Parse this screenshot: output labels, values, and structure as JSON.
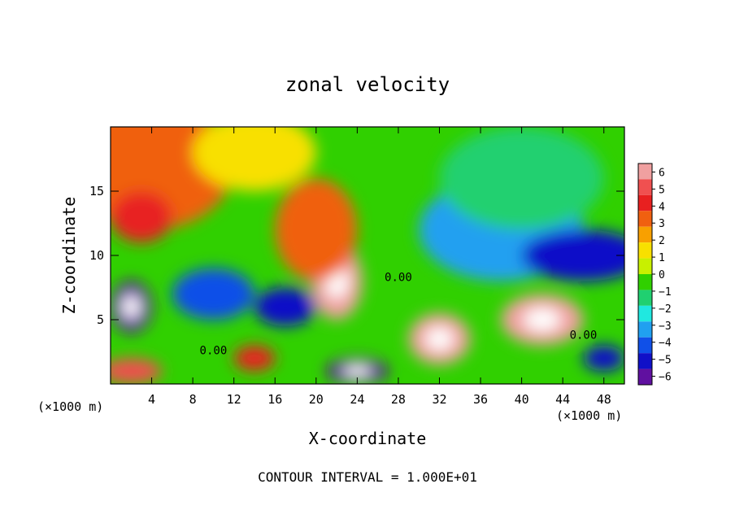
{
  "chart_data": {
    "type": "heatmap",
    "title": "zonal velocity",
    "xlabel": "X-coordinate",
    "ylabel": "Z-coordinate",
    "x_unit": "(×1000 m)",
    "x_unit_right": "(×1000 m)",
    "footer": "CONTOUR INTERVAL = 1.000E+01",
    "xlim": [
      0,
      50
    ],
    "ylim": [
      0,
      20
    ],
    "xticks": [
      4,
      8,
      12,
      16,
      20,
      24,
      28,
      32,
      36,
      40,
      44,
      48
    ],
    "yticks": [
      5,
      10,
      15
    ],
    "colorbar": {
      "min": -6,
      "max": 6,
      "ticks": [
        6,
        5,
        4,
        3,
        2,
        1,
        0,
        -1,
        -2,
        -3,
        -4,
        -5,
        -6
      ],
      "colors": [
        "#f0a0a0",
        "#f05050",
        "#e82020",
        "#f06010",
        "#f8a000",
        "#f8e000",
        "#c8f000",
        "#30d000",
        "#20d070",
        "#20e8e0",
        "#20a0f0",
        "#1050e8",
        "#1010c8",
        "#6010a0"
      ]
    },
    "contour_labels": [
      {
        "text": "0.00",
        "x": 10,
        "z": 2.3
      },
      {
        "text": "0.00",
        "x": 28,
        "z": 8
      },
      {
        "text": "0.00",
        "x": 46,
        "z": 3.5
      }
    ],
    "field_blobs": [
      {
        "x": 4,
        "z": 17,
        "v": 3,
        "rx": 8,
        "rz": 5
      },
      {
        "x": 3,
        "z": 13,
        "v": 3.5,
        "rx": 3,
        "rz": 2
      },
      {
        "x": 14,
        "z": 18,
        "v": 1.5,
        "rx": 6,
        "rz": 3
      },
      {
        "x": 22,
        "z": 8,
        "v": 6,
        "rx": 2.5,
        "rz": 3
      },
      {
        "x": 20,
        "z": 12,
        "v": 3,
        "rx": 4,
        "rz": 4
      },
      {
        "x": 38,
        "z": 12,
        "v": -3,
        "rx": 8,
        "rz": 4
      },
      {
        "x": 46,
        "z": 10,
        "v": -4.5,
        "rx": 6,
        "rz": 2
      },
      {
        "x": 40,
        "z": 16,
        "v": -1.5,
        "rx": 8,
        "rz": 4
      },
      {
        "x": 32,
        "z": 3.5,
        "v": 6,
        "rx": 3,
        "rz": 2
      },
      {
        "x": 42,
        "z": 5,
        "v": 5.5,
        "rx": 4,
        "rz": 2
      },
      {
        "x": 2,
        "z": 6,
        "v": -6,
        "rx": 2,
        "rz": 2
      },
      {
        "x": 10,
        "z": 7,
        "v": -4,
        "rx": 4,
        "rz": 2
      },
      {
        "x": 17,
        "z": 6,
        "v": -5,
        "rx": 3,
        "rz": 1.5
      },
      {
        "x": 24,
        "z": 1,
        "v": -6,
        "rx": 3,
        "rz": 1
      },
      {
        "x": 2,
        "z": 1,
        "v": 5,
        "rx": 3,
        "rz": 1
      },
      {
        "x": 48,
        "z": 2,
        "v": -5,
        "rx": 2,
        "rz": 1
      },
      {
        "x": 14,
        "z": 2,
        "v": 4,
        "rx": 2,
        "rz": 1
      }
    ]
  }
}
